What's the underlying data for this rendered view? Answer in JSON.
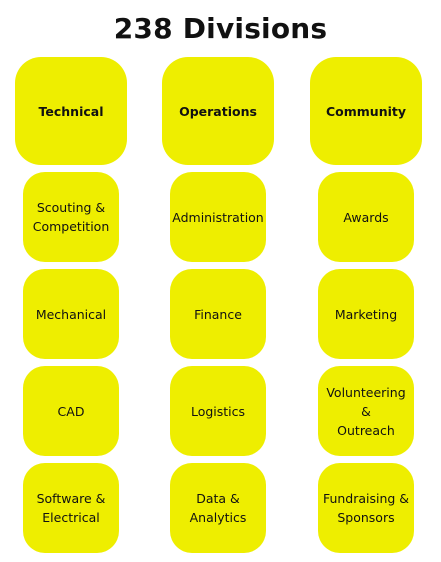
{
  "title": "238 Divisions",
  "colors": {
    "box_fill": "#eeee00",
    "text": "#111111",
    "background": "#ffffff"
  },
  "columns": [
    {
      "header": "Technical",
      "items": [
        "Scouting &\nCompetition",
        "Mechanical",
        "CAD",
        "Software &\nElectrical"
      ]
    },
    {
      "header": "Operations",
      "items": [
        "Administration",
        "Finance",
        "Logistics",
        "Data &\nAnalytics"
      ]
    },
    {
      "header": "Community",
      "items": [
        "Awards",
        "Marketing",
        "Volunteering &\nOutreach",
        "Fundraising &\nSponsors"
      ]
    }
  ]
}
